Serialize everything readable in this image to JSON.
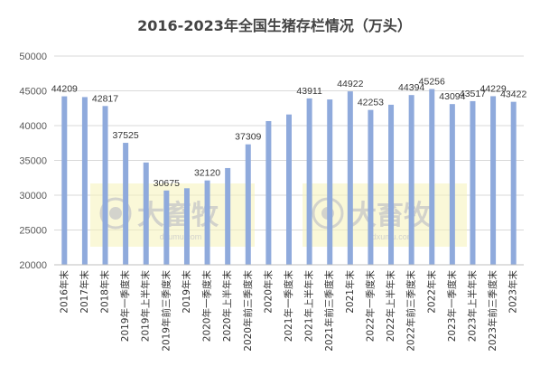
{
  "chart_data": {
    "type": "bar",
    "title": "2016-2023年全国生猪存栏情况（万头）",
    "xlabel": "",
    "ylabel": "",
    "ylim": [
      20000,
      50000
    ],
    "yticks": [
      "20000",
      "25000",
      "30000",
      "35000",
      "40000",
      "45000",
      "50000"
    ],
    "grid": true,
    "bar_color": "#8faadc",
    "categories": [
      "2016年末",
      "2017年末",
      "2018年末",
      "2019年一季度末",
      "2019年上半年末",
      "2019年前三季度末",
      "2019年末",
      "2020年一季度末",
      "2020年上半年末",
      "2020年前三季度末",
      "2020年末",
      "2021年一季度末",
      "2021年上半年末",
      "2021年前三季度末",
      "2021年末",
      "2022年一季度末",
      "2022年上半年末",
      "2022年前三季度末",
      "2022年末",
      "2023年一季度末",
      "2023年上半年末",
      "2023年前三季度末",
      "2023年末"
    ],
    "values": [
      44209,
      44100,
      42817,
      37525,
      34700,
      30675,
      31000,
      32120,
      33900,
      37309,
      40650,
      41600,
      43911,
      43760,
      44922,
      42253,
      43000,
      44394,
      45256,
      43094,
      43517,
      44229,
      43422
    ],
    "data_labels": [
      "44209",
      "",
      "42817",
      "37525",
      "",
      "30675",
      "",
      "32120",
      "",
      "37309",
      "",
      "",
      "43911",
      "",
      "44922",
      "42253",
      "",
      "44394",
      "45256",
      "43094",
      "43517",
      "44229",
      "43422"
    ]
  },
  "watermark": {
    "text": "大畜牧",
    "subtext": "dxumu.com"
  }
}
